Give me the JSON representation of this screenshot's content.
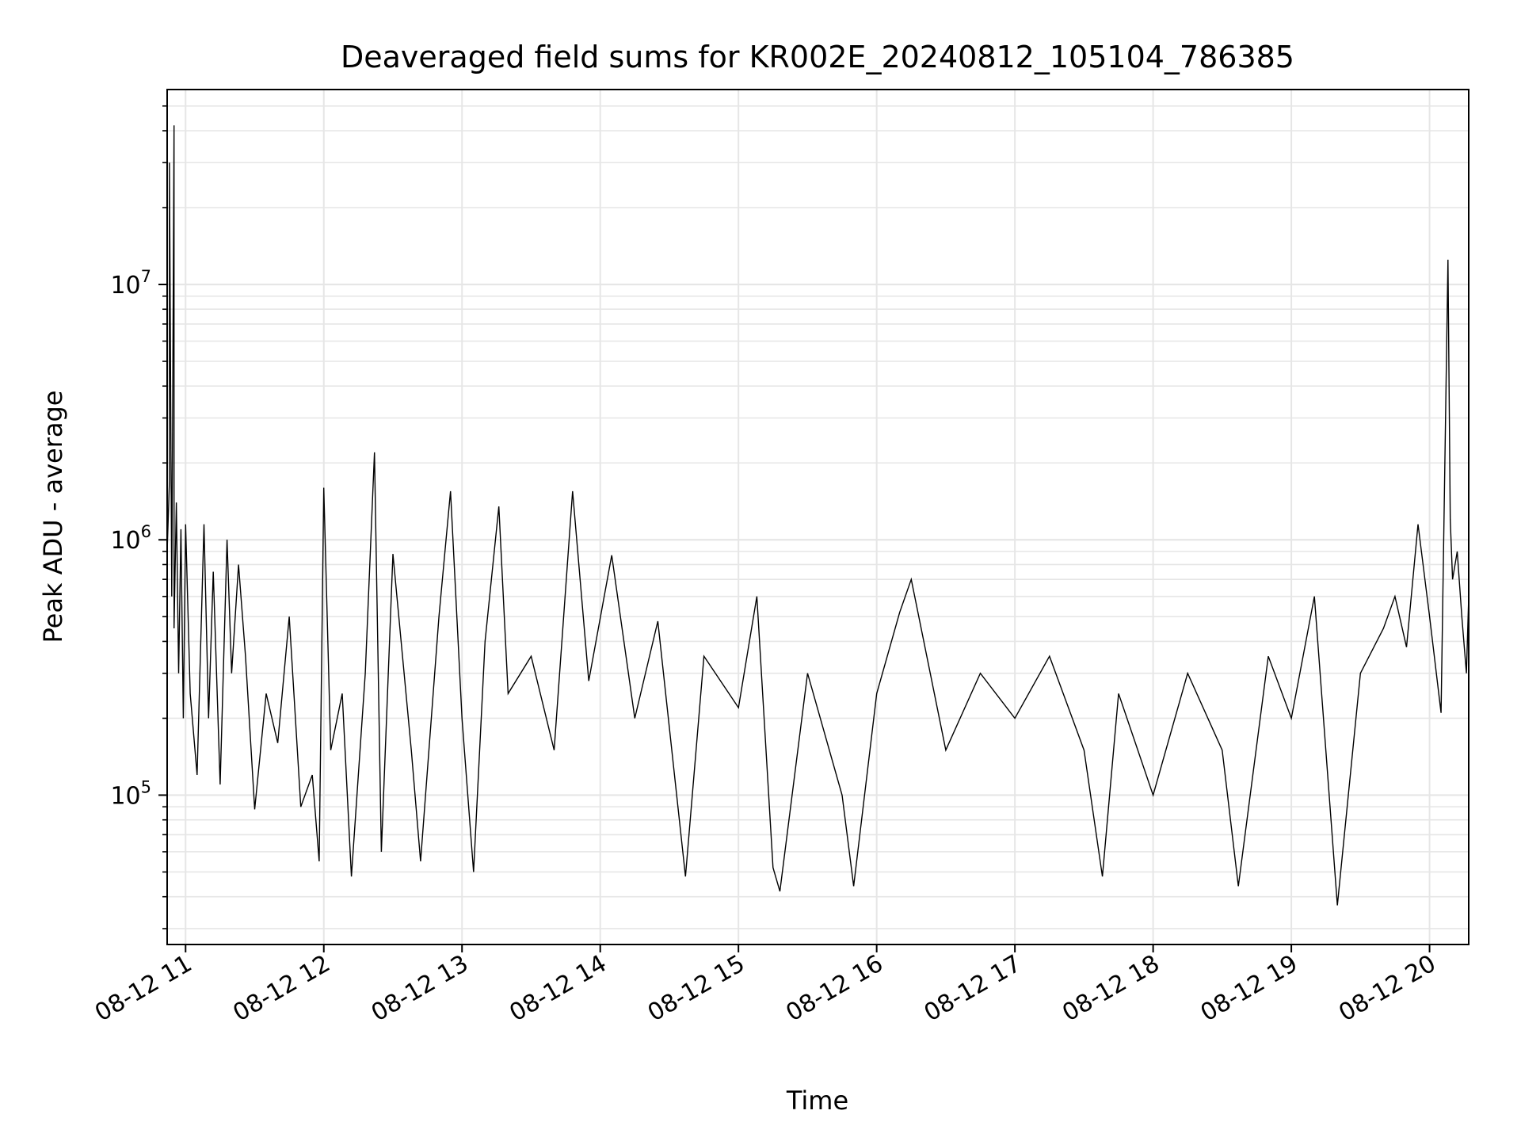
{
  "chart_data": {
    "type": "line",
    "title": "Deaveraged field sums for KR002E_20240812_105104_786385",
    "xlabel": "Time",
    "ylabel": "Peak ADU - average",
    "y_scale": "log",
    "ylim": [
      26000,
      58000000
    ],
    "xlim": [
      "2024-08-12 10:52",
      "2024-08-12 20:17"
    ],
    "grid": true,
    "line_color": "#000000",
    "grid_color": "#e6e6e6",
    "x_ticks": [
      {
        "value": "2024-08-12 11:00",
        "label": "08-12 11"
      },
      {
        "value": "2024-08-12 12:00",
        "label": "08-12 12"
      },
      {
        "value": "2024-08-12 13:00",
        "label": "08-12 13"
      },
      {
        "value": "2024-08-12 14:00",
        "label": "08-12 14"
      },
      {
        "value": "2024-08-12 15:00",
        "label": "08-12 15"
      },
      {
        "value": "2024-08-12 16:00",
        "label": "08-12 16"
      },
      {
        "value": "2024-08-12 17:00",
        "label": "08-12 17"
      },
      {
        "value": "2024-08-12 18:00",
        "label": "08-12 18"
      },
      {
        "value": "2024-08-12 19:00",
        "label": "08-12 19"
      },
      {
        "value": "2024-08-12 20:00",
        "label": "08-12 20"
      }
    ],
    "y_ticks": [
      {
        "value": 100000,
        "base": "10",
        "exp": "5"
      },
      {
        "value": 1000000,
        "base": "10",
        "exp": "6"
      },
      {
        "value": 10000000,
        "base": "10",
        "exp": "7"
      }
    ],
    "series": [
      {
        "points": [
          [
            "2024-08-12 10:52",
            900000
          ],
          [
            "2024-08-12 10:53",
            1700000
          ],
          [
            "2024-08-12 10:53",
            30000000
          ],
          [
            "2024-08-12 10:54",
            600000
          ],
          [
            "2024-08-12 10:55",
            42000000
          ],
          [
            "2024-08-12 10:55",
            450000
          ],
          [
            "2024-08-12 10:56",
            1400000
          ],
          [
            "2024-08-12 10:57",
            300000
          ],
          [
            "2024-08-12 10:58",
            1100000
          ],
          [
            "2024-08-12 10:59",
            200000
          ],
          [
            "2024-08-12 11:00",
            1150000
          ],
          [
            "2024-08-12 11:02",
            250000
          ],
          [
            "2024-08-12 11:05",
            120000
          ],
          [
            "2024-08-12 11:08",
            1150000
          ],
          [
            "2024-08-12 11:10",
            200000
          ],
          [
            "2024-08-12 11:12",
            750000
          ],
          [
            "2024-08-12 11:15",
            110000
          ],
          [
            "2024-08-12 11:18",
            1000000
          ],
          [
            "2024-08-12 11:20",
            300000
          ],
          [
            "2024-08-12 11:23",
            800000
          ],
          [
            "2024-08-12 11:26",
            350000
          ],
          [
            "2024-08-12 11:30",
            88000
          ],
          [
            "2024-08-12 11:35",
            250000
          ],
          [
            "2024-08-12 11:40",
            160000
          ],
          [
            "2024-08-12 11:45",
            500000
          ],
          [
            "2024-08-12 11:50",
            90000
          ],
          [
            "2024-08-12 11:55",
            120000
          ],
          [
            "2024-08-12 11:58",
            55000
          ],
          [
            "2024-08-12 12:00",
            1600000
          ],
          [
            "2024-08-12 12:03",
            150000
          ],
          [
            "2024-08-12 12:08",
            250000
          ],
          [
            "2024-08-12 12:12",
            48000
          ],
          [
            "2024-08-12 12:18",
            300000
          ],
          [
            "2024-08-12 12:22",
            2200000
          ],
          [
            "2024-08-12 12:25",
            60000
          ],
          [
            "2024-08-12 12:30",
            880000
          ],
          [
            "2024-08-12 12:38",
            150000
          ],
          [
            "2024-08-12 12:42",
            55000
          ],
          [
            "2024-08-12 12:50",
            500000
          ],
          [
            "2024-08-12 12:55",
            1550000
          ],
          [
            "2024-08-12 13:00",
            200000
          ],
          [
            "2024-08-12 13:05",
            50000
          ],
          [
            "2024-08-12 13:10",
            400000
          ],
          [
            "2024-08-12 13:16",
            1350000
          ],
          [
            "2024-08-12 13:20",
            250000
          ],
          [
            "2024-08-12 13:30",
            350000
          ],
          [
            "2024-08-12 13:40",
            150000
          ],
          [
            "2024-08-12 13:48",
            1550000
          ],
          [
            "2024-08-12 13:55",
            280000
          ],
          [
            "2024-08-12 14:05",
            870000
          ],
          [
            "2024-08-12 14:15",
            200000
          ],
          [
            "2024-08-12 14:25",
            480000
          ],
          [
            "2024-08-12 14:37",
            48000
          ],
          [
            "2024-08-12 14:45",
            350000
          ],
          [
            "2024-08-12 15:00",
            220000
          ],
          [
            "2024-08-12 15:08",
            600000
          ],
          [
            "2024-08-12 15:15",
            52000
          ],
          [
            "2024-08-12 15:18",
            42000
          ],
          [
            "2024-08-12 15:30",
            300000
          ],
          [
            "2024-08-12 15:45",
            100000
          ],
          [
            "2024-08-12 15:50",
            44000
          ],
          [
            "2024-08-12 16:00",
            250000
          ],
          [
            "2024-08-12 16:10",
            520000
          ],
          [
            "2024-08-12 16:15",
            700000
          ],
          [
            "2024-08-12 16:30",
            150000
          ],
          [
            "2024-08-12 16:45",
            300000
          ],
          [
            "2024-08-12 17:00",
            200000
          ],
          [
            "2024-08-12 17:15",
            350000
          ],
          [
            "2024-08-12 17:30",
            150000
          ],
          [
            "2024-08-12 17:38",
            48000
          ],
          [
            "2024-08-12 17:45",
            250000
          ],
          [
            "2024-08-12 18:00",
            100000
          ],
          [
            "2024-08-12 18:15",
            300000
          ],
          [
            "2024-08-12 18:30",
            150000
          ],
          [
            "2024-08-12 18:37",
            44000
          ],
          [
            "2024-08-12 18:50",
            350000
          ],
          [
            "2024-08-12 19:00",
            200000
          ],
          [
            "2024-08-12 19:10",
            600000
          ],
          [
            "2024-08-12 19:20",
            37000
          ],
          [
            "2024-08-12 19:30",
            300000
          ],
          [
            "2024-08-12 19:40",
            450000
          ],
          [
            "2024-08-12 19:45",
            600000
          ],
          [
            "2024-08-12 19:50",
            380000
          ],
          [
            "2024-08-12 19:55",
            1150000
          ],
          [
            "2024-08-12 20:00",
            500000
          ],
          [
            "2024-08-12 20:05",
            210000
          ],
          [
            "2024-08-12 20:08",
            12500000
          ],
          [
            "2024-08-12 20:09",
            1200000
          ],
          [
            "2024-08-12 20:10",
            700000
          ],
          [
            "2024-08-12 20:12",
            900000
          ],
          [
            "2024-08-12 20:14",
            500000
          ],
          [
            "2024-08-12 20:16",
            300000
          ],
          [
            "2024-08-12 20:17",
            600000
          ]
        ]
      }
    ]
  }
}
